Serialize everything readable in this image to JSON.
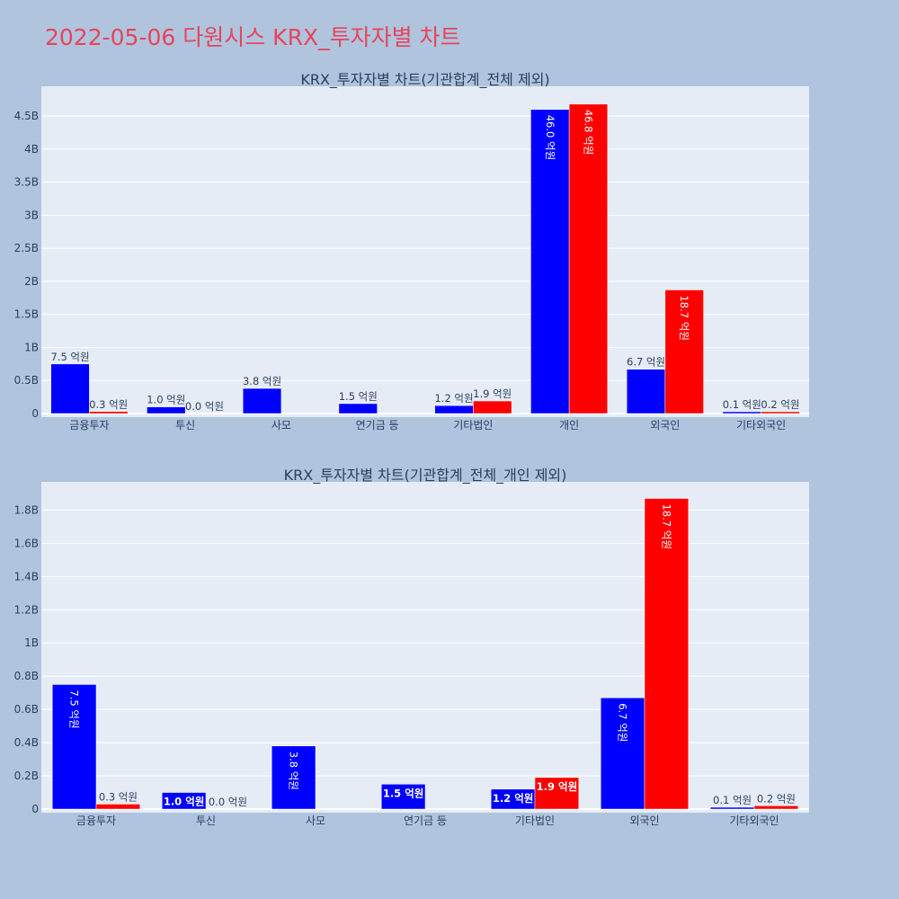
{
  "page": {
    "title": "2022-05-06 다원시스 KRX_투자자별 차트"
  },
  "colors": {
    "page_bg": "#b0c4de",
    "plot_bg": "#e5ecf6",
    "grid": "#ffffff",
    "title": "#e8445a",
    "text": "#2a3f5f",
    "series_blue": "#0000ff",
    "series_red": "#ff0000"
  },
  "chart_data": [
    {
      "type": "bar",
      "title": "KRX_투자자별 차트(기관합계_전체 제외)",
      "categories": [
        "금융투자",
        "투신",
        "사모",
        "연기금 등",
        "기타법인",
        "개인",
        "외국인",
        "기타외국인"
      ],
      "series": [
        {
          "color": "#0000ff",
          "values": [
            750000000,
            100000000,
            380000000,
            150000000,
            120000000,
            4600000000,
            670000000,
            10000000
          ],
          "labels": [
            "7.5 억원",
            "1.0 억원",
            "3.8 억원",
            "1.5 억원",
            "1.2 억원",
            "46.0 억원",
            "6.7 억원",
            "0.1 억원"
          ]
        },
        {
          "color": "#ff0000",
          "values": [
            30000000,
            0,
            null,
            null,
            190000000,
            4680000000,
            1870000000,
            20000000
          ],
          "labels": [
            "0.3 억원",
            "0.0 억원",
            "",
            "",
            "1.9 억원",
            "46.8 억원",
            "18.7 억원",
            "0.2 억원"
          ]
        }
      ],
      "ylim": [
        0,
        4950000000
      ],
      "y_ticks": [
        0,
        500000000,
        1000000000,
        1500000000,
        2000000000,
        2500000000,
        3000000000,
        3500000000,
        4000000000,
        4500000000
      ],
      "y_tick_labels": [
        "0",
        "0.5B",
        "1B",
        "1.5B",
        "2B",
        "2.5B",
        "3B",
        "3.5B",
        "4B",
        "4.5B"
      ],
      "grid": true,
      "legend": "none"
    },
    {
      "type": "bar",
      "title": "KRX_투자자별 차트(기관합계_전체_개인 제외)",
      "categories": [
        "금융투자",
        "투신",
        "사모",
        "연기금 등",
        "기타법인",
        "외국인",
        "기타외국인"
      ],
      "series": [
        {
          "color": "#0000ff",
          "values": [
            750000000,
            100000000,
            380000000,
            150000000,
            120000000,
            670000000,
            10000000
          ],
          "labels": [
            "7.5 억원",
            "1.0 억원",
            "3.8 억원",
            "1.5 억원",
            "1.2 억원",
            "6.7 억원",
            "0.1 억원"
          ]
        },
        {
          "color": "#ff0000",
          "values": [
            30000000,
            0,
            null,
            null,
            190000000,
            1870000000,
            20000000
          ],
          "labels": [
            "0.3 억원",
            "0.0 억원",
            "",
            "",
            "1.9 억원",
            "18.7 억원",
            "0.2 억원"
          ]
        }
      ],
      "ylim": [
        0,
        1970000000
      ],
      "y_ticks": [
        0,
        200000000,
        400000000,
        600000000,
        800000000,
        1000000000,
        1200000000,
        1400000000,
        1600000000,
        1800000000
      ],
      "y_tick_labels": [
        "0",
        "0.2B",
        "0.4B",
        "0.6B",
        "0.8B",
        "1B",
        "1.2B",
        "1.4B",
        "1.6B",
        "1.8B"
      ],
      "grid": true,
      "legend": "none"
    }
  ]
}
